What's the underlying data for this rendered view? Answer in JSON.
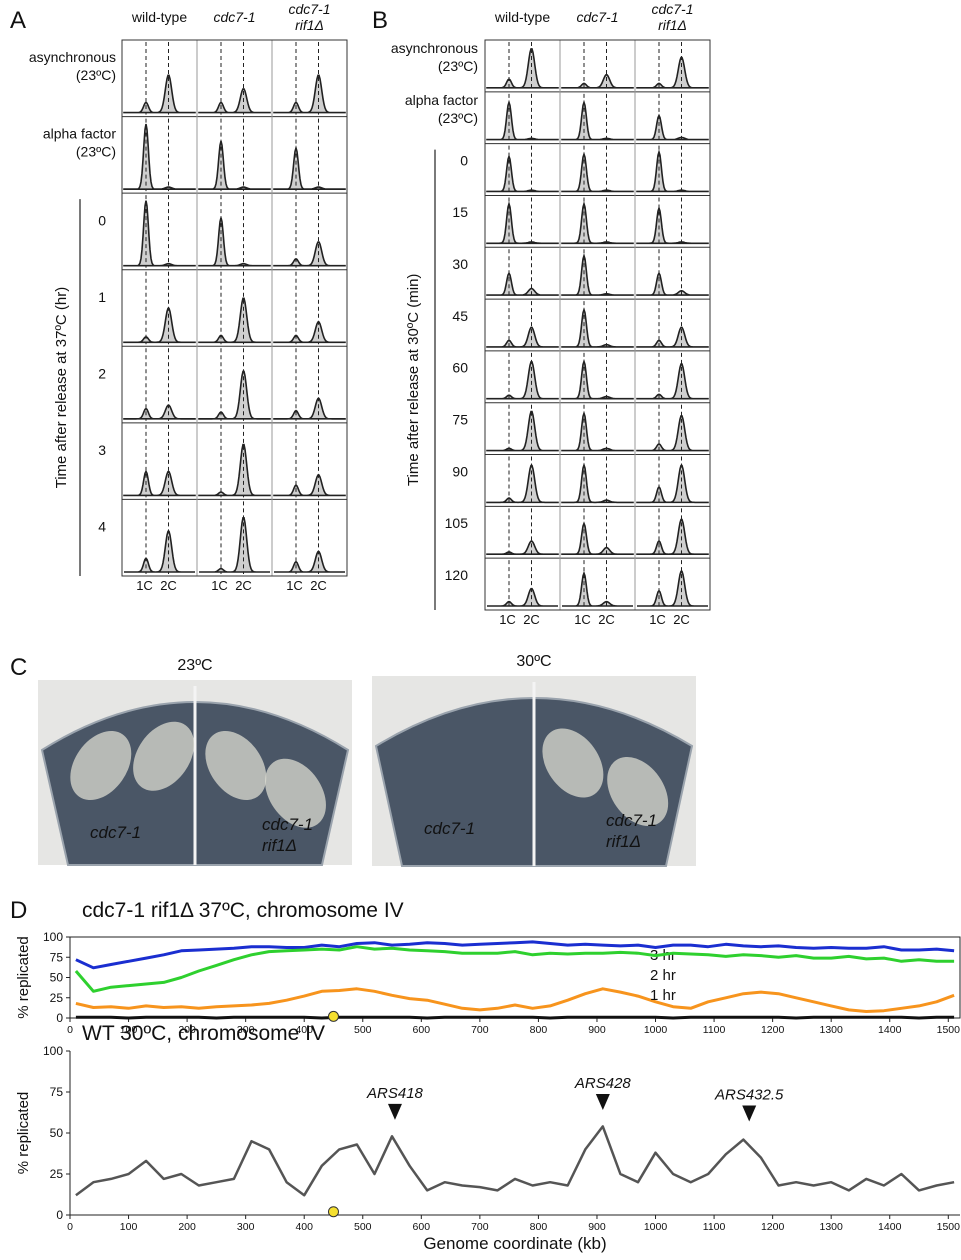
{
  "panel_a": {
    "letter": "A",
    "columns": [
      [
        "wild-type"
      ],
      [
        "cdc7-1"
      ],
      [
        "cdc7-1",
        "rif1Δ"
      ]
    ],
    "rows": [
      {
        "label": [
          "asynchronous",
          "(23ºC)"
        ],
        "peaks": [
          [
            0.15,
            0.55
          ],
          [
            0.15,
            0.35
          ],
          [
            0.15,
            0.55
          ]
        ]
      },
      {
        "label": [
          "alpha factor",
          "(23ºC)"
        ],
        "peaks": [
          [
            0.95,
            0.03
          ],
          [
            0.7,
            0.03
          ],
          [
            0.6,
            0.03
          ]
        ]
      },
      {
        "label": [
          "0"
        ],
        "peaks": [
          [
            0.95,
            0.03
          ],
          [
            0.7,
            0.03
          ],
          [
            0.1,
            0.35
          ]
        ]
      },
      {
        "label": [
          "1"
        ],
        "peaks": [
          [
            0.08,
            0.5
          ],
          [
            0.1,
            0.65
          ],
          [
            0.1,
            0.3
          ]
        ]
      },
      {
        "label": [
          "2"
        ],
        "peaks": [
          [
            0.15,
            0.2
          ],
          [
            0.1,
            0.7
          ],
          [
            0.12,
            0.3
          ]
        ]
      },
      {
        "label": [
          "3"
        ],
        "peaks": [
          [
            0.35,
            0.35
          ],
          [
            0.05,
            0.75
          ],
          [
            0.15,
            0.3
          ]
        ]
      },
      {
        "label": [
          "4"
        ],
        "peaks": [
          [
            0.2,
            0.6
          ],
          [
            0.05,
            0.8
          ],
          [
            0.15,
            0.3
          ]
        ]
      }
    ],
    "time_label": "Time after release at 37ºC (hr)",
    "x_labels": [
      "1C",
      "2C"
    ]
  },
  "panel_b": {
    "letter": "B",
    "columns": [
      [
        "wild-type"
      ],
      [
        "cdc7-1"
      ],
      [
        "cdc7-1",
        "rif1Δ"
      ]
    ],
    "rows": [
      {
        "label": [
          "asynchronous",
          "(23ºC)"
        ],
        "peaks": [
          [
            0.2,
            0.9
          ],
          [
            0.1,
            0.3
          ],
          [
            0.1,
            0.7
          ]
        ]
      },
      {
        "label": [
          "alpha factor",
          "(23ºC)"
        ],
        "peaks": [
          [
            0.85,
            0.03
          ],
          [
            0.85,
            0.03
          ],
          [
            0.55,
            0.05
          ]
        ]
      },
      {
        "label": [
          "0"
        ],
        "peaks": [
          [
            0.8,
            0.03
          ],
          [
            0.85,
            0.03
          ],
          [
            0.9,
            0.03
          ]
        ]
      },
      {
        "label": [
          "15"
        ],
        "peaks": [
          [
            0.9,
            0.03
          ],
          [
            0.9,
            0.03
          ],
          [
            0.8,
            0.03
          ]
        ]
      },
      {
        "label": [
          "30"
        ],
        "peaks": [
          [
            0.5,
            0.15
          ],
          [
            0.9,
            0.03
          ],
          [
            0.5,
            0.1
          ]
        ]
      },
      {
        "label": [
          "45"
        ],
        "peaks": [
          [
            0.15,
            0.45
          ],
          [
            0.85,
            0.05
          ],
          [
            0.15,
            0.45
          ]
        ]
      },
      {
        "label": [
          "60"
        ],
        "peaks": [
          [
            0.08,
            0.85
          ],
          [
            0.85,
            0.05
          ],
          [
            0.1,
            0.8
          ]
        ]
      },
      {
        "label": [
          "75"
        ],
        "peaks": [
          [
            0.05,
            0.9
          ],
          [
            0.85,
            0.05
          ],
          [
            0.15,
            0.8
          ]
        ]
      },
      {
        "label": [
          "90"
        ],
        "peaks": [
          [
            0.1,
            0.85
          ],
          [
            0.85,
            0.05
          ],
          [
            0.35,
            0.85
          ]
        ]
      },
      {
        "label": [
          "105"
        ],
        "peaks": [
          [
            0.05,
            0.3
          ],
          [
            0.7,
            0.15
          ],
          [
            0.3,
            0.8
          ]
        ]
      },
      {
        "label": [
          "120"
        ],
        "peaks": [
          [
            0.1,
            0.4
          ],
          [
            0.75,
            0.1
          ],
          [
            0.35,
            0.8
          ]
        ]
      }
    ],
    "time_label": "Time after release at 30ºC (min)",
    "x_labels": [
      "1C",
      "2C"
    ]
  },
  "panel_c": {
    "letter": "C",
    "plates": [
      {
        "temperature": "23ºC",
        "left_strain": [
          "cdc7-1"
        ],
        "right_strain": [
          "cdc7-1",
          "rif1Δ"
        ]
      },
      {
        "temperature": "30ºC",
        "left_strain": [
          "cdc7-1"
        ],
        "right_strain": [
          "cdc7-1",
          "rif1Δ"
        ]
      }
    ]
  },
  "panel_d": {
    "letter": "D"
  },
  "chart_data": [
    {
      "type": "line",
      "title": "cdc7-1 rif1Δ  37ºC, chromosome IV",
      "ylabel": "% replicated",
      "frame": true,
      "x": [
        10,
        40,
        70,
        100,
        130,
        160,
        190,
        220,
        250,
        280,
        310,
        340,
        370,
        400,
        430,
        460,
        490,
        520,
        550,
        580,
        610,
        640,
        670,
        700,
        730,
        760,
        790,
        820,
        850,
        880,
        910,
        940,
        970,
        1000,
        1030,
        1060,
        1090,
        1120,
        1150,
        1180,
        1210,
        1240,
        1270,
        1300,
        1330,
        1360,
        1390,
        1420,
        1450,
        1480,
        1510
      ],
      "xlim": [
        0,
        1520
      ],
      "xticks": [
        0,
        100,
        200,
        300,
        400,
        500,
        600,
        700,
        800,
        900,
        1000,
        1100,
        1200,
        1300,
        1400,
        1500
      ],
      "ylim": [
        0,
        100
      ],
      "yticks": [
        0,
        25,
        50,
        75,
        100
      ],
      "series": [
        {
          "name": "3 hr",
          "color": "#1a2ed0",
          "values": [
            72,
            62,
            66,
            70,
            74,
            78,
            83,
            84,
            85,
            86,
            88,
            88,
            87,
            87,
            90,
            88,
            92,
            93,
            90,
            91,
            93,
            92,
            90,
            91,
            92,
            93,
            94,
            92,
            90,
            91,
            90,
            89,
            90,
            87,
            90,
            90,
            88,
            91,
            89,
            88,
            89,
            87,
            86,
            87,
            86,
            86,
            88,
            84,
            84,
            85,
            83
          ]
        },
        {
          "name": "2 hr",
          "color": "#2ed02e",
          "values": [
            58,
            33,
            38,
            40,
            42,
            44,
            50,
            58,
            65,
            72,
            78,
            82,
            83,
            84,
            85,
            84,
            88,
            85,
            86,
            84,
            83,
            82,
            80,
            80,
            80,
            82,
            78,
            80,
            79,
            80,
            80,
            81,
            80,
            77,
            80,
            79,
            78,
            76,
            78,
            77,
            75,
            77,
            74,
            74,
            76,
            73,
            74,
            70,
            72,
            70,
            70
          ]
        },
        {
          "name": "1 hr",
          "color": "#f7941d",
          "values": [
            18,
            13,
            14,
            12,
            15,
            13,
            14,
            12,
            14,
            15,
            16,
            18,
            22,
            27,
            33,
            34,
            36,
            33,
            28,
            24,
            22,
            17,
            12,
            10,
            12,
            16,
            12,
            15,
            22,
            30,
            36,
            32,
            27,
            20,
            14,
            12,
            20,
            25,
            30,
            32,
            30,
            25,
            20,
            15,
            10,
            8,
            9,
            12,
            15,
            20,
            28
          ]
        },
        {
          "color": "#111111",
          "values": [
            1,
            1,
            1,
            0,
            1,
            1,
            1,
            1,
            0,
            1,
            1,
            1,
            1,
            1,
            0,
            1,
            1,
            1,
            1,
            1,
            0,
            1,
            1,
            1,
            1,
            1,
            1,
            0,
            1,
            1,
            1,
            1,
            1,
            1,
            0,
            1,
            1,
            1,
            1,
            1,
            1,
            0,
            1,
            1,
            1,
            1,
            1,
            1,
            0,
            1,
            1
          ]
        }
      ],
      "markers": [
        {
          "x": 450,
          "y": 2,
          "color": "#f5e030"
        }
      ]
    },
    {
      "type": "line",
      "title": "WT 30ºC, chromosome IV",
      "ylabel": "% replicated",
      "xlabel": "Genome coordinate (kb)",
      "frame": false,
      "x": [
        10,
        40,
        70,
        100,
        130,
        160,
        190,
        220,
        250,
        280,
        310,
        340,
        370,
        400,
        430,
        460,
        490,
        520,
        550,
        580,
        610,
        640,
        670,
        700,
        730,
        760,
        790,
        820,
        850,
        880,
        910,
        940,
        970,
        1000,
        1030,
        1060,
        1090,
        1120,
        1150,
        1180,
        1210,
        1240,
        1270,
        1300,
        1330,
        1360,
        1390,
        1420,
        1450,
        1480,
        1510
      ],
      "xlim": [
        0,
        1520
      ],
      "xticks": [
        0,
        100,
        200,
        300,
        400,
        500,
        600,
        700,
        800,
        900,
        1000,
        1100,
        1200,
        1300,
        1400,
        1500
      ],
      "ylim": [
        0,
        100
      ],
      "yticks": [
        0,
        25,
        50,
        75,
        100
      ],
      "series": [
        {
          "color": "#555555",
          "values": [
            12,
            20,
            22,
            25,
            33,
            22,
            25,
            18,
            20,
            22,
            45,
            40,
            20,
            12,
            30,
            40,
            43,
            25,
            48,
            30,
            15,
            20,
            18,
            17,
            15,
            22,
            18,
            20,
            18,
            40,
            54,
            25,
            20,
            38,
            25,
            20,
            25,
            37,
            46,
            35,
            18,
            20,
            18,
            20,
            15,
            22,
            18,
            25,
            15,
            18,
            20
          ]
        }
      ],
      "markers": [
        {
          "x": 450,
          "y": 2,
          "color": "#f5e030"
        }
      ],
      "annotations": [
        {
          "text": "ARS418",
          "x": 555,
          "y": 58
        },
        {
          "text": "ARS428",
          "x": 910,
          "y": 64
        },
        {
          "text": "ARS432.5",
          "x": 1160,
          "y": 57
        }
      ]
    }
  ]
}
